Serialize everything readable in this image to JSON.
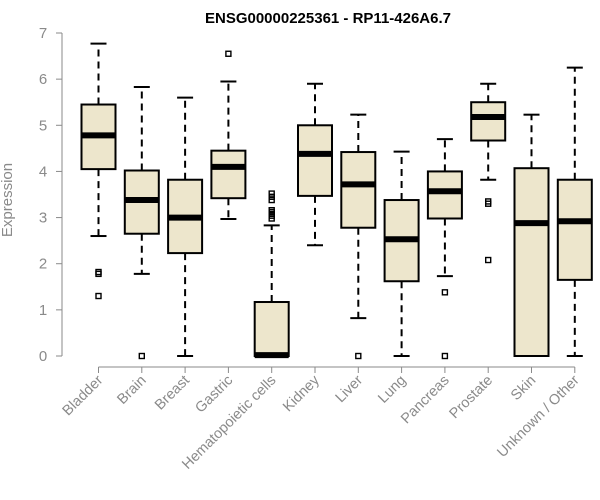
{
  "chart_data": {
    "type": "boxplot",
    "title": "ENSG00000225361 - RP11-426A6.7",
    "xlabel": "",
    "ylabel": "Expression",
    "ylim": [
      0,
      7
    ],
    "yticks": [
      0,
      1,
      2,
      3,
      4,
      5,
      6,
      7
    ],
    "box_color": "#ede6cc",
    "line_color": "#000000",
    "axis_color": "#8a8a8a",
    "categories": [
      "Bladder",
      "Brain",
      "Breast",
      "Gastric",
      "Hematopoietic cells",
      "Kidney",
      "Liver",
      "Lung",
      "Pancreas",
      "Prostate",
      "Skin",
      "Unknown / Other"
    ],
    "boxes": [
      {
        "whisker_low": 2.6,
        "q1": 4.05,
        "median": 4.78,
        "q3": 5.45,
        "whisker_high": 6.77,
        "outliers": [
          1.78,
          1.82,
          1.3
        ]
      },
      {
        "whisker_low": 1.78,
        "q1": 2.65,
        "median": 3.38,
        "q3": 4.02,
        "whisker_high": 5.83,
        "outliers": [
          0.0
        ]
      },
      {
        "whisker_low": 0.0,
        "q1": 2.23,
        "median": 3.0,
        "q3": 3.82,
        "whisker_high": 5.6,
        "outliers": []
      },
      {
        "whisker_low": 2.97,
        "q1": 3.42,
        "median": 4.1,
        "q3": 4.45,
        "whisker_high": 5.95,
        "outliers": [
          6.55
        ]
      },
      {
        "whisker_low": 0.0,
        "q1": 0.0,
        "median": 0.02,
        "q3": 1.17,
        "whisker_high": 2.83,
        "outliers": [
          2.98,
          3.04,
          3.08,
          3.12,
          3.16,
          3.38,
          3.45,
          3.52
        ]
      },
      {
        "whisker_low": 2.4,
        "q1": 3.47,
        "median": 4.38,
        "q3": 5.0,
        "whisker_high": 5.9,
        "outliers": []
      },
      {
        "whisker_low": 0.82,
        "q1": 2.78,
        "median": 3.72,
        "q3": 4.42,
        "whisker_high": 5.23,
        "outliers": [
          0.0
        ]
      },
      {
        "whisker_low": 0.0,
        "q1": 1.62,
        "median": 2.53,
        "q3": 3.38,
        "whisker_high": 4.43,
        "outliers": []
      },
      {
        "whisker_low": 1.73,
        "q1": 2.98,
        "median": 3.57,
        "q3": 4.0,
        "whisker_high": 4.7,
        "outliers": [
          1.38,
          0.0
        ]
      },
      {
        "whisker_low": 3.82,
        "q1": 4.67,
        "median": 5.18,
        "q3": 5.5,
        "whisker_high": 5.9,
        "outliers": [
          3.35,
          3.3,
          2.08
        ]
      },
      {
        "whisker_low": 0.0,
        "q1": 0.0,
        "median": 2.88,
        "q3": 4.07,
        "whisker_high": 5.23,
        "outliers": []
      },
      {
        "whisker_low": 0.0,
        "q1": 1.65,
        "median": 2.92,
        "q3": 3.82,
        "whisker_high": 6.25,
        "outliers": []
      }
    ]
  }
}
